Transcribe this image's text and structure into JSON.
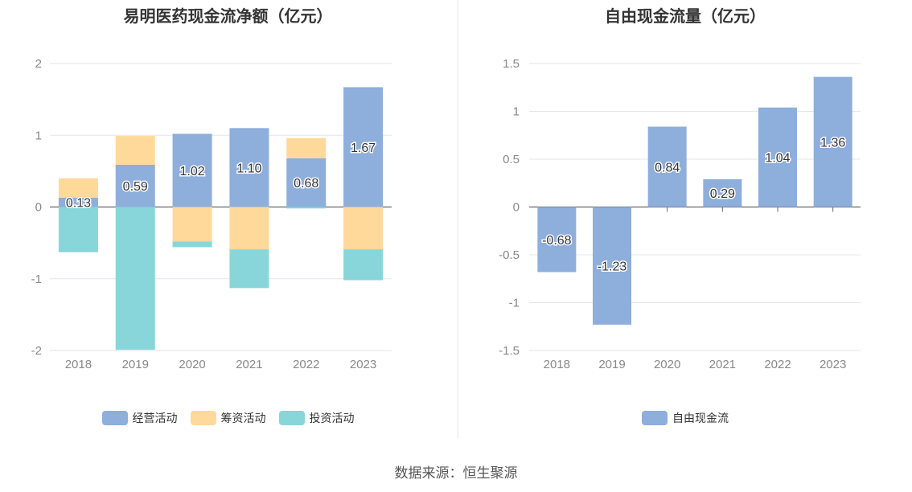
{
  "source": "数据来源：恒生聚源",
  "chart_data": [
    {
      "type": "bar",
      "stacked": true,
      "title": "易明医药现金流净额（亿元）",
      "categories": [
        "2018",
        "2019",
        "2020",
        "2021",
        "2022",
        "2023"
      ],
      "ylim": [
        -2,
        2
      ],
      "yticks": [
        2,
        1,
        0,
        -1,
        -2
      ],
      "grid": true,
      "legend_position": "bottom",
      "series": [
        {
          "name": "经营活动",
          "color": "#8eaedc",
          "values": [
            0.13,
            0.59,
            1.02,
            1.1,
            0.68,
            1.67
          ],
          "labels": [
            "0.13",
            "0.59",
            "1.02",
            "1.10",
            "0.68",
            "1.67"
          ]
        },
        {
          "name": "筹资活动",
          "color": "#ffd999",
          "values": [
            0.27,
            0.4,
            -0.48,
            -0.59,
            0.28,
            -0.59
          ]
        },
        {
          "name": "投资活动",
          "color": "#88d6da",
          "values": [
            -0.63,
            -1.99,
            -0.08,
            -0.54,
            -0.02,
            -0.43
          ]
        }
      ]
    },
    {
      "type": "bar",
      "title": "自由现金流量（亿元）",
      "categories": [
        "2018",
        "2019",
        "2020",
        "2021",
        "2022",
        "2023"
      ],
      "ylim": [
        -1.5,
        1.5
      ],
      "yticks": [
        "1.5",
        "1",
        "0.5",
        "0",
        "-0.5",
        "-1",
        "-1.5"
      ],
      "grid": true,
      "legend_position": "bottom",
      "series": [
        {
          "name": "自由现金流",
          "color": "#8eaedc",
          "values": [
            -0.68,
            -1.23,
            0.84,
            0.29,
            1.04,
            1.36
          ],
          "labels": [
            "-0.68",
            "-1.23",
            "0.84",
            "0.29",
            "1.04",
            "1.36"
          ]
        }
      ]
    }
  ]
}
